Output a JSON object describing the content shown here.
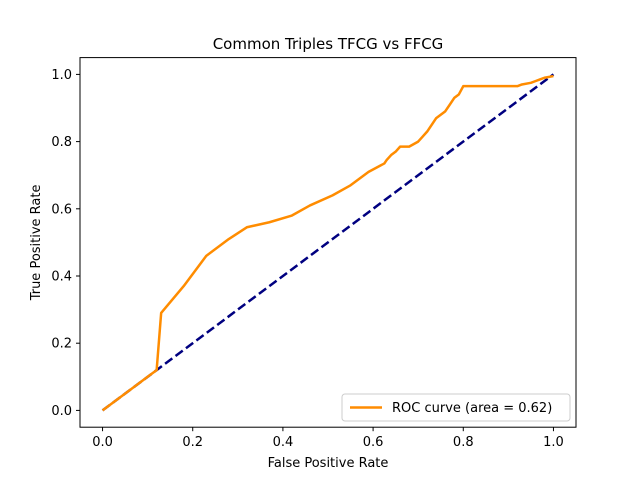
{
  "chart_data": {
    "type": "line",
    "title": "Common Triples TFCG vs FFCG",
    "xlabel": "False Positive Rate",
    "ylabel": "True Positive Rate",
    "xlim": [
      -0.05,
      1.05
    ],
    "ylim": [
      -0.05,
      1.05
    ],
    "xticks": [
      0.0,
      0.2,
      0.4,
      0.6,
      0.8,
      1.0
    ],
    "yticks": [
      0.0,
      0.2,
      0.4,
      0.6,
      0.8,
      1.0
    ],
    "xtick_labels": [
      "0.0",
      "0.2",
      "0.4",
      "0.6",
      "0.8",
      "1.0"
    ],
    "ytick_labels": [
      "0.0",
      "0.2",
      "0.4",
      "0.6",
      "0.8",
      "1.0"
    ],
    "grid": false,
    "legend_position": "lower-right",
    "series": [
      {
        "name": "ROC curve (area = 0.62)",
        "color": "#ff8c00",
        "style": "solid",
        "x": [
          0.0,
          0.05,
          0.1,
          0.12,
          0.13,
          0.18,
          0.23,
          0.28,
          0.32,
          0.37,
          0.42,
          0.46,
          0.51,
          0.55,
          0.59,
          0.625,
          0.63,
          0.64,
          0.65,
          0.66,
          0.68,
          0.7,
          0.71,
          0.72,
          0.73,
          0.74,
          0.75,
          0.76,
          0.77,
          0.78,
          0.79,
          0.8,
          0.81,
          0.84,
          0.87,
          0.9,
          0.92,
          0.93,
          0.95,
          0.96,
          0.97,
          0.98,
          1.0
        ],
        "y": [
          0.0,
          0.05,
          0.1,
          0.12,
          0.29,
          0.37,
          0.46,
          0.51,
          0.545,
          0.56,
          0.58,
          0.61,
          0.64,
          0.67,
          0.71,
          0.735,
          0.745,
          0.76,
          0.77,
          0.785,
          0.785,
          0.8,
          0.815,
          0.83,
          0.85,
          0.87,
          0.88,
          0.89,
          0.91,
          0.93,
          0.94,
          0.965,
          0.965,
          0.965,
          0.965,
          0.965,
          0.965,
          0.97,
          0.975,
          0.98,
          0.985,
          0.99,
          0.995
        ]
      },
      {
        "name": "",
        "color": "#000080",
        "style": "dashed",
        "x": [
          0.0,
          1.0
        ],
        "y": [
          0.0,
          1.0
        ]
      }
    ]
  }
}
